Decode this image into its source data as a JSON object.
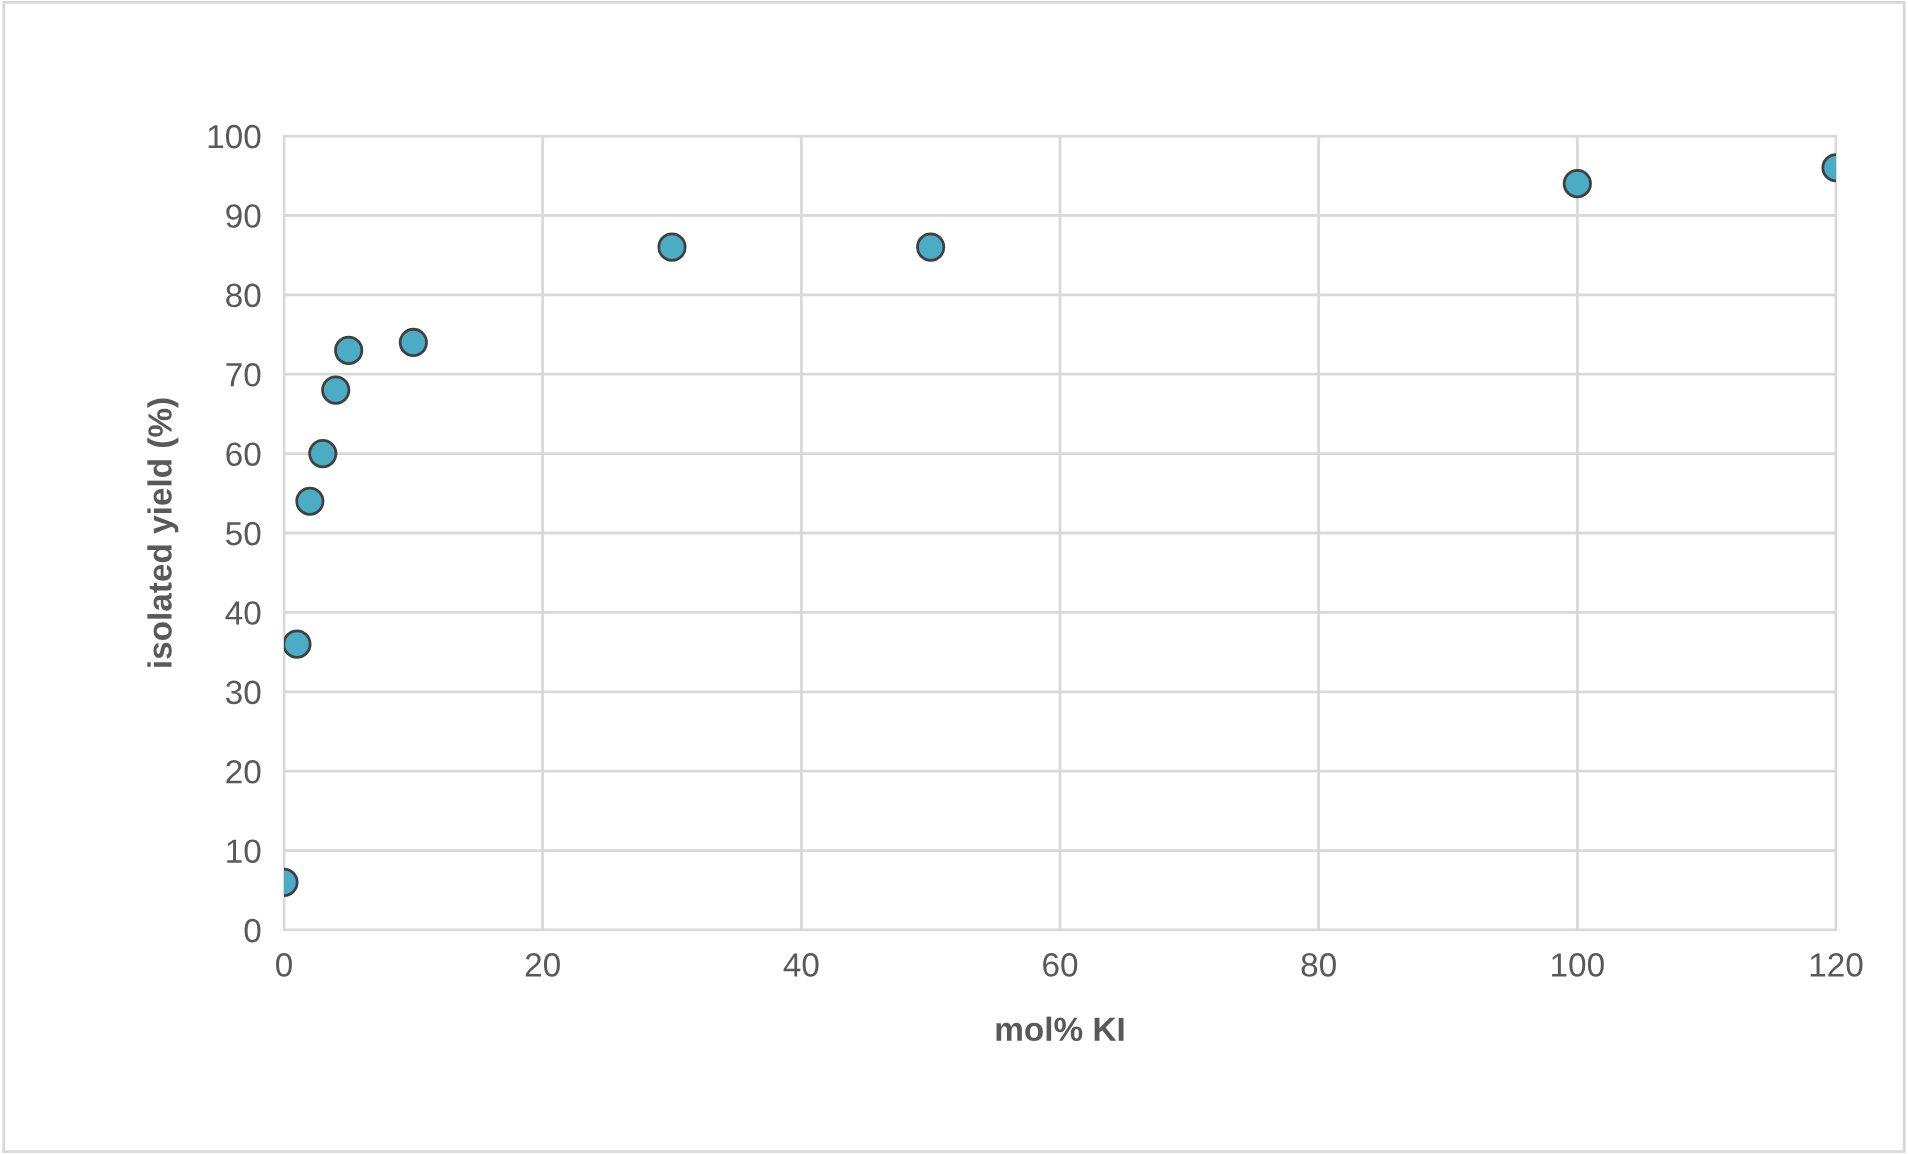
{
  "chart_data": {
    "type": "scatter",
    "xlabel": "mol% KI",
    "ylabel": "isolated yield (%)",
    "x": [
      0,
      1,
      2,
      3,
      4,
      5,
      10,
      30,
      50,
      100,
      120
    ],
    "values": [
      6,
      36,
      54,
      60,
      68,
      73,
      74,
      86,
      86,
      94,
      96
    ],
    "color": "#4bacc6",
    "marker": "circle",
    "xlim": [
      0,
      120
    ],
    "xticks": [
      0,
      20,
      40,
      60,
      80,
      100,
      120
    ],
    "ylim": [
      0,
      100
    ],
    "yticks": [
      0,
      10,
      20,
      30,
      40,
      50,
      60,
      70,
      80,
      90,
      100
    ],
    "grid": true,
    "legend": false
  }
}
